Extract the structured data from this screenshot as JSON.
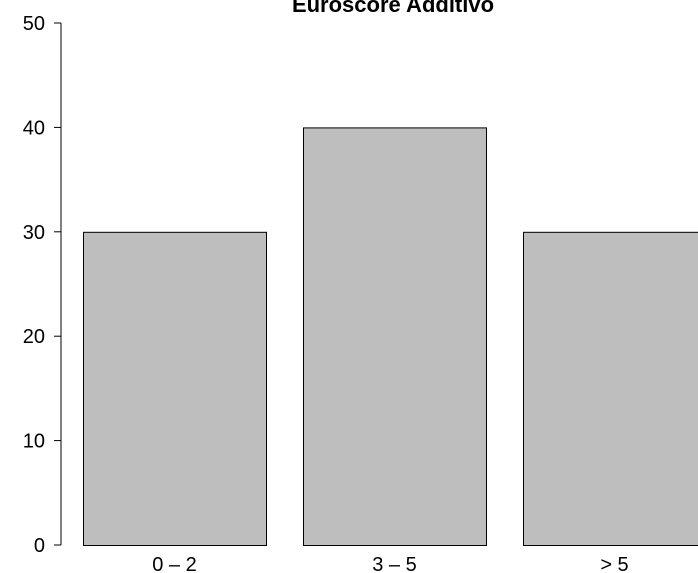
{
  "colors": {
    "bar_fill": "#bebebe",
    "bar_stroke": "#000000",
    "axis": "#000000",
    "background": "#ffffff"
  },
  "chart_data": {
    "type": "bar",
    "title": "Euroscore Additivo",
    "xlabel": "",
    "ylabel": "",
    "categories": [
      "0 – 2",
      "3 – 5",
      "> 5"
    ],
    "values": [
      30,
      40,
      30
    ],
    "ylim": [
      0,
      50
    ],
    "yticks": [
      0,
      10,
      20,
      30,
      40,
      50
    ],
    "grid": false,
    "legend": "none"
  }
}
